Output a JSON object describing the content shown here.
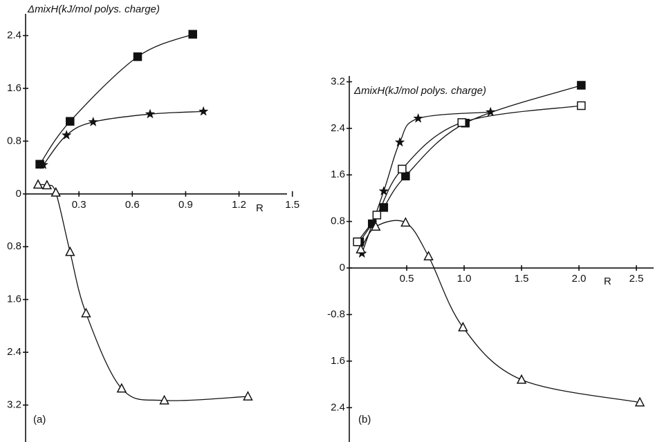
{
  "chart_data": [
    {
      "type": "scatter-curve",
      "panel_label": "(a)",
      "y_label": "ΔmixH(kJ/mol polys. charge)",
      "x_label": "R",
      "xlim": [
        0,
        1.47
      ],
      "ylim": [
        -3.76,
        2.73
      ],
      "xticks": [
        0.3,
        0.6,
        0.9,
        1.2,
        1.5
      ],
      "yticks": [
        2.4,
        1.6,
        0.8,
        0,
        {
          "value": -0.8,
          "label": "0.8"
        },
        {
          "value": -1.6,
          "label": "1.6"
        },
        {
          "value": -2.4,
          "label": "2.4"
        },
        {
          "value": -3.2,
          "label": "3.2"
        }
      ],
      "series": [
        {
          "marker": "square-filled",
          "color": "#111",
          "x": [
            0.08,
            0.25,
            0.63,
            0.94
          ],
          "values": [
            0.45,
            1.1,
            2.08,
            2.42
          ]
        },
        {
          "marker": "star",
          "color": "#111",
          "x": [
            0.1,
            0.23,
            0.38,
            0.7,
            1.0
          ],
          "values": [
            0.44,
            0.89,
            1.09,
            1.21,
            1.25
          ]
        },
        {
          "marker": "triangle-open",
          "color": "#111",
          "x": [
            0.07,
            0.12,
            0.17,
            0.25,
            0.34,
            0.54,
            0.78,
            1.25
          ],
          "values": [
            0.14,
            0.13,
            0.02,
            -0.88,
            -1.81,
            -2.95,
            -3.13,
            -3.07
          ]
        }
      ]
    },
    {
      "type": "scatter-curve",
      "panel_label": "(b)",
      "y_label": "ΔmixH(kJ/mol polys. charge)",
      "x_label": "R",
      "xlim": [
        0,
        2.65
      ],
      "ylim": [
        -2.99,
        3.3
      ],
      "xticks": [
        0.5,
        {
          "value": 1,
          "label": "1.0"
        },
        1.5,
        {
          "value": 2,
          "label": "2.0"
        },
        2.5
      ],
      "yticks": [
        3.2,
        2.4,
        1.6,
        0.8,
        0,
        {
          "value": -0.8,
          "label": "-0.8"
        },
        {
          "value": -1.6,
          "label": "1.6"
        },
        {
          "value": -2.4,
          "label": "2.4"
        }
      ],
      "series": [
        {
          "marker": "star",
          "color": "#111",
          "x": [
            0.11,
            0.3,
            0.44,
            0.6,
            1.23
          ],
          "values": [
            0.25,
            1.32,
            2.16,
            2.57,
            2.68
          ]
        },
        {
          "marker": "square-filled",
          "color": "#111",
          "x": [
            0.09,
            0.2,
            0.3,
            0.49,
            1.01,
            2.02
          ],
          "values": [
            0.45,
            0.76,
            1.04,
            1.58,
            2.49,
            3.14
          ]
        },
        {
          "marker": "square-open",
          "color": "#111",
          "x": [
            0.07,
            0.24,
            0.46,
            0.98,
            2.02
          ],
          "values": [
            0.45,
            0.91,
            1.7,
            2.5,
            2.79
          ]
        },
        {
          "marker": "triangle-open",
          "color": "#111",
          "x": [
            0.1,
            0.23,
            0.49,
            0.69,
            0.99,
            1.5,
            2.53
          ],
          "values": [
            0.32,
            0.71,
            0.78,
            0.2,
            -1.02,
            -1.92,
            -2.31
          ]
        }
      ]
    }
  ]
}
